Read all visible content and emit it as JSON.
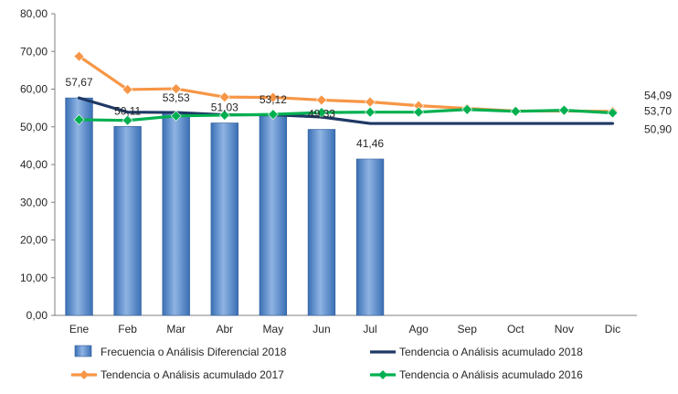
{
  "chart_data": {
    "type": "bar",
    "title": "",
    "xlabel": "",
    "ylabel": "",
    "ylim": [
      0,
      80
    ],
    "y_ticks": [
      "0,00",
      "10,00",
      "20,00",
      "30,00",
      "40,00",
      "50,00",
      "60,00",
      "70,00",
      "80,00"
    ],
    "categories": [
      "Ene",
      "Feb",
      "Mar",
      "Abr",
      "May",
      "Jun",
      "Jul",
      "Ago",
      "Sep",
      "Oct",
      "Nov",
      "Dic"
    ],
    "grid": false,
    "legend_position": "bottom",
    "series": [
      {
        "name": "Frecuencia o Análisis Diferencial 2018",
        "kind": "bar",
        "color": "#4a7ebb",
        "values": [
          57.67,
          50.11,
          53.53,
          51.03,
          53.12,
          49.33,
          41.46,
          null,
          null,
          null,
          null,
          null
        ],
        "labels": [
          "57,67",
          "50,11",
          "53,53",
          "51,03",
          "53,12",
          "49,33",
          "41,46",
          null,
          null,
          null,
          null,
          null
        ]
      },
      {
        "name": "Tendencia o Análisis acumulado 2018",
        "kind": "line",
        "color": "#1f3864",
        "values": [
          57.67,
          53.9,
          53.8,
          53.2,
          53.2,
          52.6,
          50.9,
          50.9,
          50.9,
          50.9,
          50.9,
          50.9
        ],
        "end_label": "50,90"
      },
      {
        "name": "Tendencia o Análisis acumulado 2017",
        "kind": "line",
        "marker": "diamond",
        "color": "#f79646",
        "values": [
          68.7,
          59.9,
          60.1,
          57.9,
          57.8,
          57.1,
          56.6,
          55.6,
          54.9,
          54.2,
          54.2,
          54.09
        ],
        "end_label": "54,09"
      },
      {
        "name": "Tendencia o Análisis acumulado 2016",
        "kind": "line",
        "marker": "diamond",
        "color": "#00b050",
        "values": [
          51.9,
          51.7,
          52.9,
          53.1,
          53.3,
          53.8,
          53.9,
          53.9,
          54.6,
          54.1,
          54.4,
          53.7
        ],
        "end_label": "53,70"
      }
    ]
  }
}
